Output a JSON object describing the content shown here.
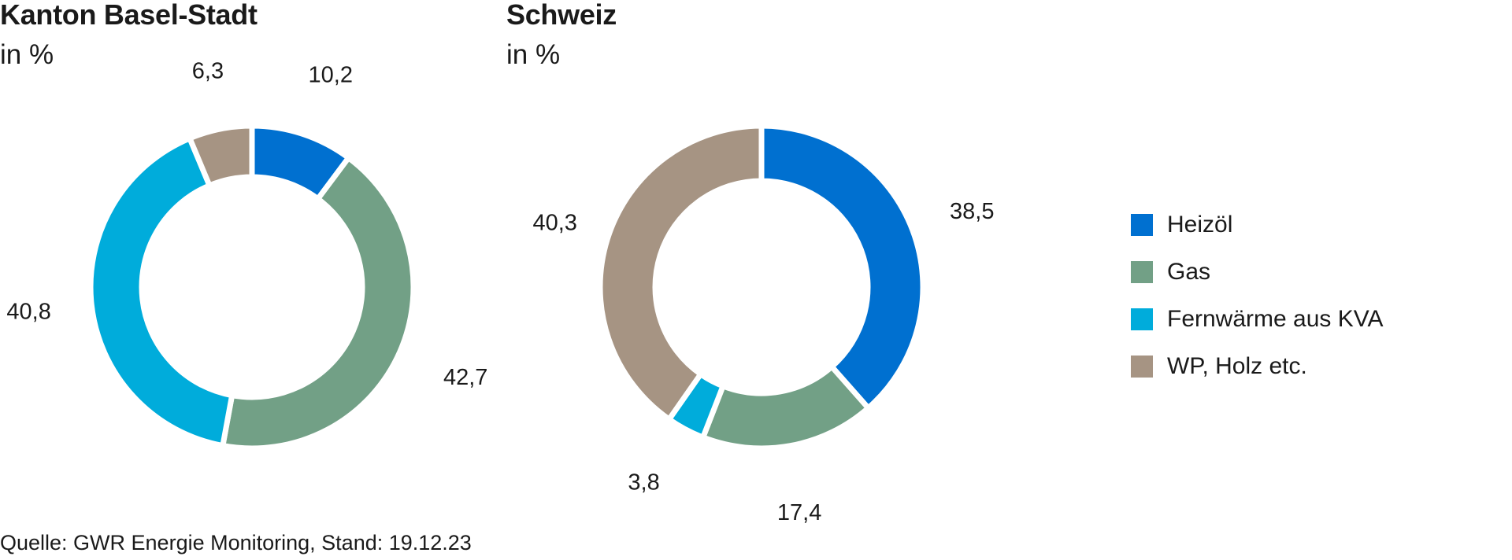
{
  "charts_meta": {
    "basel": {
      "title": "Kanton Basel-Stadt",
      "subtitle": "in %"
    },
    "schweiz": {
      "title": "Schweiz",
      "subtitle": "in %"
    }
  },
  "colors": {
    "heizoel": "#0070d0",
    "gas": "#72a086",
    "fernwaerme": "#00acdb",
    "wp_holz": "#a69483"
  },
  "legend": [
    {
      "label": "Heizöl",
      "color": "#0070d0"
    },
    {
      "label": "Gas",
      "color": "#72a086"
    },
    {
      "label": "Fernwärme aus KVA",
      "color": "#00acdb"
    },
    {
      "label": "WP, Holz etc.",
      "color": "#a69483"
    }
  ],
  "chart_data": [
    {
      "type": "pie",
      "variant": "donut",
      "title": "Kanton Basel-Stadt",
      "subtitle": "in %",
      "categories": [
        "Heizöl",
        "Gas",
        "Fernwärme aus KVA",
        "WP, Holz etc."
      ],
      "values": [
        10.2,
        42.7,
        40.8,
        6.3
      ],
      "value_labels": [
        "10,2",
        "42,7",
        "40,8",
        "6,3"
      ],
      "colors": [
        "#0070d0",
        "#72a086",
        "#00acdb",
        "#a69483"
      ]
    },
    {
      "type": "pie",
      "variant": "donut",
      "title": "Schweiz",
      "subtitle": "in %",
      "categories": [
        "Heizöl",
        "Gas",
        "Fernwärme aus KVA",
        "WP, Holz etc."
      ],
      "values": [
        38.5,
        17.4,
        3.8,
        40.3
      ],
      "value_labels": [
        "38,5",
        "17,4",
        "3,8",
        "40,3"
      ],
      "colors": [
        "#0070d0",
        "#72a086",
        "#00acdb",
        "#a69483"
      ]
    }
  ],
  "source": "Quelle: GWR Energie Monitoring, Stand: 19.12.23"
}
